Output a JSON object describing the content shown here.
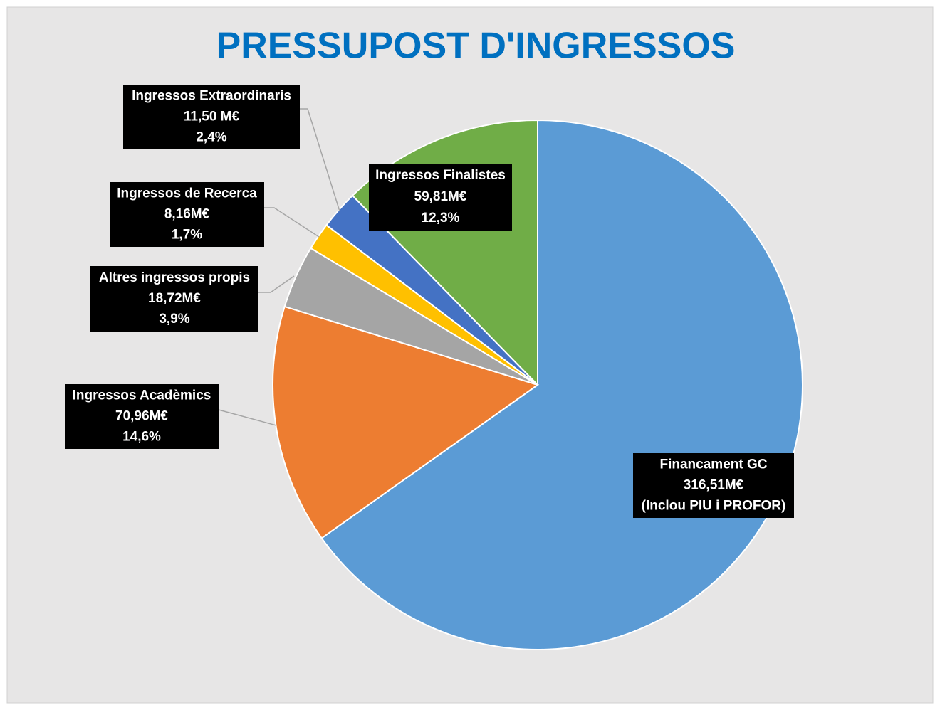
{
  "chart_data": {
    "type": "pie",
    "title": "PRESSUPOST D'INGRESSOS",
    "categories": [
      "Financament  GC",
      "Ingressos Acadèmics",
      "Altres ingressos propis",
      "Ingressos de Recerca",
      "Ingressos Extraordinaris",
      "Ingressos Finalistes"
    ],
    "values": [
      316.51,
      70.96,
      18.72,
      8.16,
      11.5,
      59.81
    ],
    "value_labels": [
      "316,51M€",
      "70,96M€",
      "18,72M€",
      "8,16M€",
      "11,50 M€",
      "59,81M€"
    ],
    "percent_labels": [
      null,
      "14,6%",
      "3,9%",
      "1,7%",
      "2,4%",
      "12,3%"
    ],
    "annotation": "(Inclou PIU i PROFOR)",
    "colors": [
      "#5b9bd5",
      "#ed7d31",
      "#a5a5a5",
      "#ffc000",
      "#4472c4",
      "#70ad47"
    ]
  }
}
